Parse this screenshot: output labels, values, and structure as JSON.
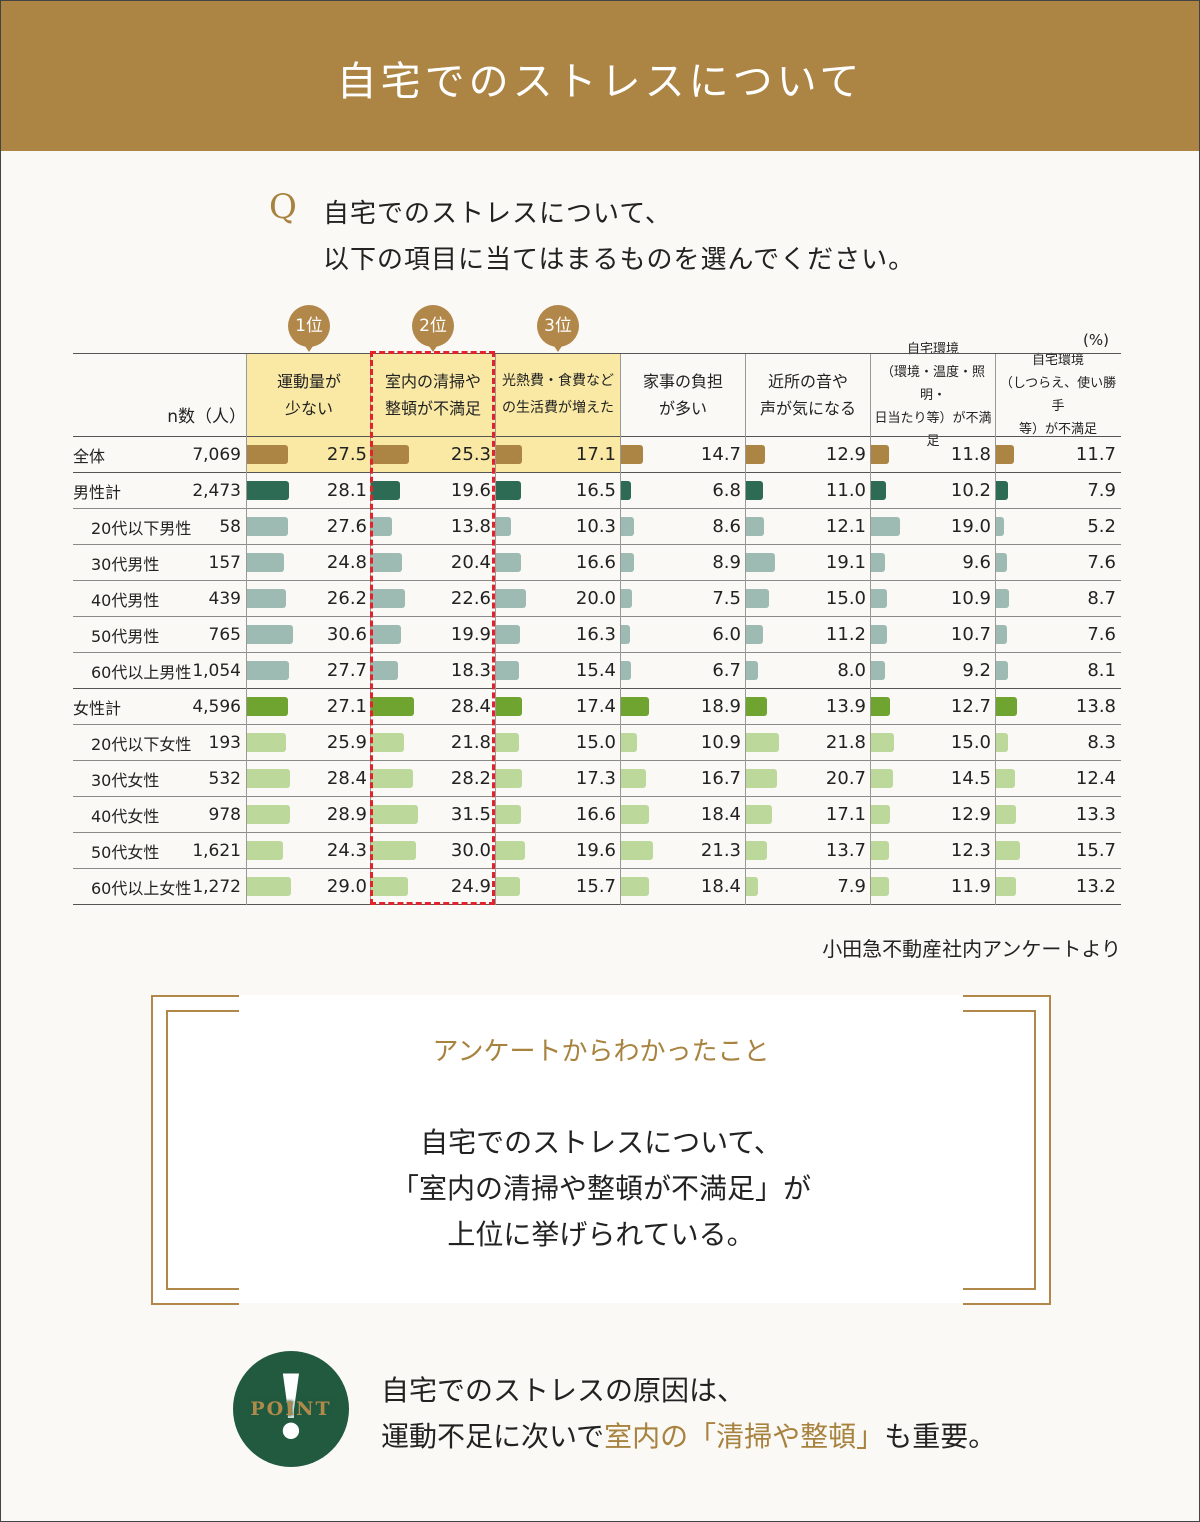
{
  "header": {
    "title": "自宅でのストレスについて"
  },
  "question": {
    "mark": "Q",
    "line1": "自宅でのストレスについて、",
    "line2": "以下の項目に当てはまるものを選んでください。"
  },
  "colors": {
    "brand_gold": "#ac8443",
    "highlight_yellow": "#f9e9a4",
    "dashed_red": "#e1242b",
    "point_green": "#225a40"
  },
  "chart_data": {
    "type": "table",
    "unit": "(%)",
    "n_header": "n数（人）",
    "ranks": [
      {
        "label": "1位",
        "column": 0
      },
      {
        "label": "2位",
        "column": 1
      },
      {
        "label": "3位",
        "column": 2
      }
    ],
    "columns": [
      {
        "lines": [
          "運動量が",
          "少ない"
        ]
      },
      {
        "lines": [
          "室内の清掃や",
          "整頓が不満足"
        ]
      },
      {
        "lines": [
          "光熱費・食費など",
          "の生活費が増えた"
        ]
      },
      {
        "lines": [
          "家事の負担",
          "が多い"
        ]
      },
      {
        "lines": [
          "近所の音や",
          "声が気になる"
        ]
      },
      {
        "lines": [
          "自宅環境",
          "（環境・温度・照明・",
          "日当たり等）が不満足"
        ]
      },
      {
        "lines": [
          "自宅環境",
          "（しつらえ、使い勝手",
          "等）が不満足"
        ]
      }
    ],
    "rows": [
      {
        "label": "全体",
        "n": "7,069",
        "group": "total",
        "indent": false,
        "values": [
          27.5,
          25.3,
          17.1,
          14.7,
          12.9,
          11.8,
          11.7
        ]
      },
      {
        "label": "男性計",
        "n": "2,473",
        "group": "male_total",
        "indent": false,
        "values": [
          28.1,
          19.6,
          16.5,
          6.8,
          11.0,
          10.2,
          7.9
        ]
      },
      {
        "label": "20代以下男性",
        "n": "58",
        "group": "male",
        "indent": true,
        "values": [
          27.6,
          13.8,
          10.3,
          8.6,
          12.1,
          19.0,
          5.2
        ]
      },
      {
        "label": "30代男性",
        "n": "157",
        "group": "male",
        "indent": true,
        "values": [
          24.8,
          20.4,
          16.6,
          8.9,
          19.1,
          9.6,
          7.6
        ]
      },
      {
        "label": "40代男性",
        "n": "439",
        "group": "male",
        "indent": true,
        "values": [
          26.2,
          22.6,
          20.0,
          7.5,
          15.0,
          10.9,
          8.7
        ]
      },
      {
        "label": "50代男性",
        "n": "765",
        "group": "male",
        "indent": true,
        "values": [
          30.6,
          19.9,
          16.3,
          6.0,
          11.2,
          10.7,
          7.6
        ]
      },
      {
        "label": "60代以上男性",
        "n": "1,054",
        "group": "male",
        "indent": true,
        "values": [
          27.7,
          18.3,
          15.4,
          6.7,
          8.0,
          9.2,
          8.1
        ]
      },
      {
        "label": "女性計",
        "n": "4,596",
        "group": "female_total",
        "indent": false,
        "values": [
          27.1,
          28.4,
          17.4,
          18.9,
          13.9,
          12.7,
          13.8
        ]
      },
      {
        "label": "20代以下女性",
        "n": "193",
        "group": "female",
        "indent": true,
        "values": [
          25.9,
          21.8,
          15.0,
          10.9,
          21.8,
          15.0,
          8.3
        ]
      },
      {
        "label": "30代女性",
        "n": "532",
        "group": "female",
        "indent": true,
        "values": [
          28.4,
          28.2,
          17.3,
          16.7,
          20.7,
          14.5,
          12.4
        ]
      },
      {
        "label": "40代女性",
        "n": "978",
        "group": "female",
        "indent": true,
        "values": [
          28.9,
          31.5,
          16.6,
          18.4,
          17.1,
          12.9,
          13.3
        ]
      },
      {
        "label": "50代女性",
        "n": "1,621",
        "group": "female",
        "indent": true,
        "values": [
          24.3,
          30.0,
          19.6,
          21.3,
          13.7,
          12.3,
          15.7
        ]
      },
      {
        "label": "60代以上女性",
        "n": "1,272",
        "group": "female",
        "indent": true,
        "values": [
          29.0,
          24.9,
          15.7,
          18.4,
          7.9,
          11.9,
          13.2
        ]
      }
    ],
    "bar_colors": {
      "total": "#ac8443",
      "male_total": "#2e6b55",
      "male": "#9dbab3",
      "female_total": "#6ea42f",
      "female": "#bcd89b"
    }
  },
  "source": "小田急不動産社内アンケートより",
  "summary": {
    "heading": "アンケートからわかったこと",
    "line1": "自宅でのストレスについて、",
    "line2": "「室内の清掃や整頓が不満足」が",
    "line3": "上位に挙げられている。"
  },
  "point": {
    "mark": "!",
    "word": "POINT",
    "line1": "自宅でのストレスの原因は、",
    "line2_a": "運動不足に次いで",
    "line2_b": "室内の「清掃や整頓」",
    "line2_c": "も重要。"
  }
}
